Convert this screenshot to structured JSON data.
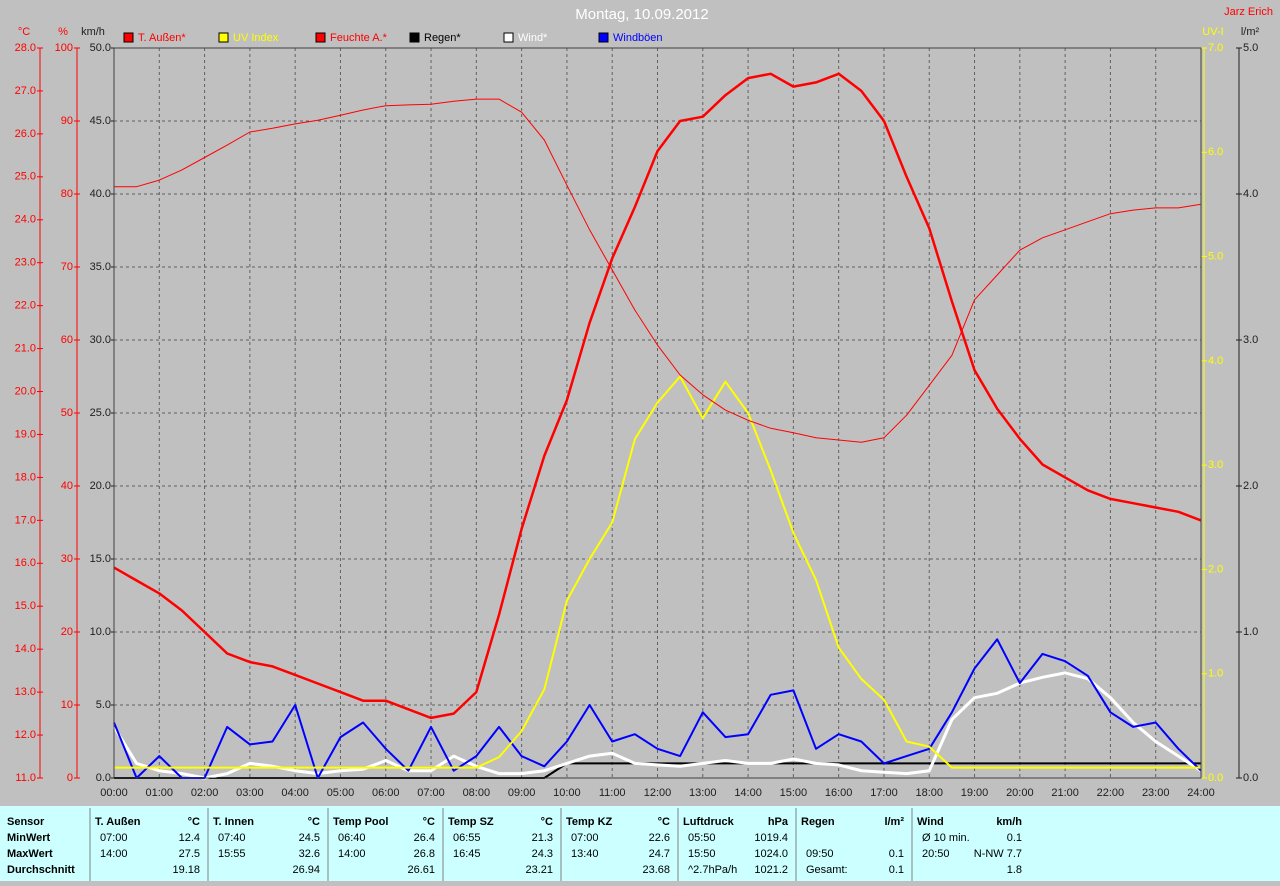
{
  "chart_data": {
    "type": "line",
    "title": "Montag, 10.09.2012",
    "subtitle": "Jarz Erich",
    "xlim": [
      0,
      24
    ],
    "xticks": [
      {
        "value": 0,
        "label": "00:00"
      },
      {
        "value": 1,
        "label": "01:00"
      },
      {
        "value": 2,
        "label": "02:00"
      },
      {
        "value": 3,
        "label": "03:00"
      },
      {
        "value": 4,
        "label": "04:00"
      },
      {
        "value": 5,
        "label": "05:00"
      },
      {
        "value": 6,
        "label": "06:00"
      },
      {
        "value": 7,
        "label": "07:00"
      },
      {
        "value": 8,
        "label": "08:00"
      },
      {
        "value": 9,
        "label": "09:00"
      },
      {
        "value": 10,
        "label": "10:00"
      },
      {
        "value": 11,
        "label": "11:00"
      },
      {
        "value": 12,
        "label": "12:00"
      },
      {
        "value": 13,
        "label": "13:00"
      },
      {
        "value": 14,
        "label": "14:00"
      },
      {
        "value": 15,
        "label": "15:00"
      },
      {
        "value": 16,
        "label": "16:00"
      },
      {
        "value": 17,
        "label": "17:00"
      },
      {
        "value": 18,
        "label": "18:00"
      },
      {
        "value": 19,
        "label": "19:00"
      },
      {
        "value": 20,
        "label": "20:00"
      },
      {
        "value": 21,
        "label": "21:00"
      },
      {
        "value": 22,
        "label": "22:00"
      },
      {
        "value": 23,
        "label": "23:00"
      },
      {
        "value": 24,
        "label": "24:00"
      }
    ],
    "grid": true,
    "axes": [
      {
        "id": "temp",
        "label": "°C",
        "side": "left",
        "color": "#ff0000",
        "lim": [
          11,
          28
        ],
        "ticks": [
          {
            "value": 28,
            "label": "28.0"
          },
          {
            "value": 27,
            "label": "27.0"
          },
          {
            "value": 26,
            "label": "26.0"
          },
          {
            "value": 25,
            "label": "25.0"
          },
          {
            "value": 24,
            "label": "24.0"
          },
          {
            "value": 23,
            "label": "23.0"
          },
          {
            "value": 22,
            "label": "22.0"
          },
          {
            "value": 21,
            "label": "21.0"
          },
          {
            "value": 20,
            "label": "20.0"
          },
          {
            "value": 19,
            "label": "19.0"
          },
          {
            "value": 18,
            "label": "18.0"
          },
          {
            "value": 17,
            "label": "17.0"
          },
          {
            "value": 16,
            "label": "16.0"
          },
          {
            "value": 15,
            "label": "15.0"
          },
          {
            "value": 14,
            "label": "14.0"
          },
          {
            "value": 13,
            "label": "13.0"
          },
          {
            "value": 12,
            "label": "12.0"
          },
          {
            "value": 11,
            "label": "11.0"
          }
        ]
      },
      {
        "id": "hum",
        "label": "%",
        "side": "left",
        "color": "#ff0000",
        "lim": [
          0,
          100
        ],
        "ticks": [
          100,
          90,
          80,
          70,
          60,
          50,
          40,
          30,
          20,
          10,
          0
        ]
      },
      {
        "id": "wind",
        "label": "km/h",
        "side": "left",
        "color": "#202020",
        "lim": [
          0,
          50
        ],
        "grid": true,
        "ticks": [
          {
            "value": 50,
            "label": "50.0"
          },
          {
            "value": 45,
            "label": "45.0"
          },
          {
            "value": 40,
            "label": "40.0"
          },
          {
            "value": 35,
            "label": "35.0"
          },
          {
            "value": 30,
            "label": "30.0"
          },
          {
            "value": 25,
            "label": "25.0"
          },
          {
            "value": 20,
            "label": "20.0"
          },
          {
            "value": 15,
            "label": "15.0"
          },
          {
            "value": 10,
            "label": "10.0"
          },
          {
            "value": 5,
            "label": "5.0"
          },
          {
            "value": 0,
            "label": "0.0"
          }
        ]
      },
      {
        "id": "uv",
        "label": "UV-I",
        "side": "right",
        "color": "#ffff00",
        "lim": [
          0,
          7
        ],
        "ticks": [
          {
            "value": 7,
            "label": "7.0"
          },
          {
            "value": 6,
            "label": "6.0"
          },
          {
            "value": 5,
            "label": "5.0"
          },
          {
            "value": 4,
            "label": "4.0"
          },
          {
            "value": 3,
            "label": "3.0"
          },
          {
            "value": 2,
            "label": "2.0"
          },
          {
            "value": 1,
            "label": "1.0"
          },
          {
            "value": 0,
            "label": "0.0"
          }
        ]
      },
      {
        "id": "rain",
        "label": "l/m²",
        "side": "right",
        "color": "#202020",
        "lim": [
          0,
          5
        ],
        "ticks": [
          {
            "value": 5,
            "label": "5.0"
          },
          {
            "value": 4,
            "label": "4.0"
          },
          {
            "value": 3,
            "label": "3.0"
          },
          {
            "value": 2,
            "label": "2.0"
          },
          {
            "value": 1,
            "label": "1.0"
          },
          {
            "value": 0,
            "label": "0.0"
          }
        ]
      }
    ],
    "x": [
      0,
      0.5,
      1,
      1.5,
      2,
      2.5,
      3,
      3.5,
      4,
      4.5,
      5,
      5.5,
      6,
      6.5,
      7,
      7.5,
      8,
      8.5,
      9,
      9.5,
      10,
      10.5,
      11,
      11.5,
      12,
      12.5,
      13,
      13.5,
      14,
      14.5,
      15,
      15.5,
      16,
      16.5,
      17,
      17.5,
      18,
      18.5,
      19,
      19.5,
      20,
      20.5,
      21,
      21.5,
      22,
      22.5,
      23,
      23.5,
      24
    ],
    "series": [
      {
        "name": "T. Außen*",
        "color": "#ff0000",
        "axis": "temp",
        "width": 2.5,
        "values": [
          15.9,
          15.6,
          15.3,
          14.9,
          14.4,
          13.9,
          13.7,
          13.6,
          13.4,
          13.2,
          13.0,
          12.8,
          12.8,
          12.6,
          12.4,
          12.5,
          13.0,
          14.8,
          16.8,
          18.5,
          19.8,
          21.6,
          23.1,
          24.3,
          25.6,
          26.3,
          26.4,
          26.9,
          27.3,
          27.4,
          27.1,
          27.2,
          27.4,
          27.0,
          26.3,
          25.0,
          23.8,
          22.1,
          20.5,
          19.6,
          18.9,
          18.3,
          18.0,
          17.7,
          17.5,
          17.4,
          17.3,
          17.2,
          17.0
        ]
      },
      {
        "name": "UV Index",
        "color": "#ffff00",
        "axis": "uv",
        "width": 2,
        "values": [
          0.1,
          0.1,
          0.1,
          0.1,
          0.1,
          0.1,
          0.1,
          0.1,
          0.1,
          0.1,
          0.1,
          0.1,
          0.1,
          0.1,
          0.1,
          0.1,
          0.1,
          0.2,
          0.45,
          0.85,
          1.7,
          2.1,
          2.45,
          3.25,
          3.6,
          3.85,
          3.45,
          3.8,
          3.5,
          2.95,
          2.35,
          1.9,
          1.25,
          0.95,
          0.75,
          0.35,
          0.3,
          0.1,
          0.1,
          0.1,
          0.1,
          0.1,
          0.1,
          0.1,
          0.1,
          0.1,
          0.1,
          0.1,
          0.1
        ]
      },
      {
        "name": "Feuchte A.*",
        "color": "#ff0000",
        "axis": "hum",
        "width": 1,
        "values": [
          81.0,
          81.0,
          81.9,
          83.3,
          85,
          86.7,
          88.5,
          89,
          89.6,
          90.1,
          90.8,
          91.5,
          92.1,
          92.2,
          92.3,
          92.7,
          93,
          93,
          91.2,
          87.4,
          81.2,
          75.1,
          69.6,
          64.1,
          59.3,
          55.2,
          52.5,
          50.4,
          49.0,
          47.9,
          47.3,
          46.6,
          46.3,
          46.0,
          46.6,
          49.7,
          53.8,
          57.9,
          65.5,
          68.9,
          72.3,
          74.0,
          75.1,
          76.2,
          77.3,
          77.8,
          78.1,
          78.1,
          78.6
        ]
      },
      {
        "name": "Regen*",
        "color": "#000000",
        "axis": "rain",
        "width": 2,
        "values": [
          0,
          0,
          0,
          0,
          0,
          0,
          0,
          0,
          0,
          0,
          0,
          0,
          0,
          0,
          0,
          0,
          0,
          0,
          0,
          0,
          0.1,
          0.1,
          0.1,
          0.1,
          0.1,
          0.1,
          0.1,
          0.1,
          0.1,
          0.1,
          0.1,
          0.1,
          0.1,
          0.1,
          0.1,
          0.1,
          0.1,
          0.1,
          0.1,
          0.1,
          0.1,
          0.1,
          0.1,
          0.1,
          0.1,
          0.1,
          0.1,
          0.1,
          0.1
        ]
      },
      {
        "name": "Wind*",
        "color": "#ffffff",
        "axis": "wind",
        "width": 3,
        "values": [
          3.5,
          1.0,
          0.5,
          0.3,
          0,
          0.3,
          1.0,
          0.8,
          0.5,
          0.3,
          0.5,
          0.6,
          1.2,
          0.5,
          0.5,
          1.5,
          0.8,
          0.3,
          0.3,
          0.5,
          1.0,
          1.5,
          1.7,
          1.0,
          0.9,
          0.8,
          1.0,
          1.2,
          1.0,
          1.0,
          1.3,
          1.0,
          0.9,
          0.5,
          0.4,
          0.3,
          0.5,
          4.0,
          5.5,
          5.8,
          6.5,
          6.9,
          7.2,
          6.8,
          5.5,
          3.8,
          2.5,
          1.5,
          0.5
        ]
      },
      {
        "name": "Windböen",
        "color": "#0000ff",
        "axis": "wind",
        "width": 2,
        "values": [
          3.8,
          0,
          1.5,
          0,
          0,
          3.5,
          2.3,
          2.5,
          5.0,
          0,
          2.8,
          3.8,
          2.0,
          0.5,
          3.5,
          0.5,
          1.5,
          3.5,
          1.5,
          0.8,
          2.5,
          5.0,
          2.5,
          3.0,
          2.0,
          1.5,
          4.5,
          2.8,
          3.0,
          5.7,
          6.0,
          2.0,
          3.0,
          2.5,
          1.0,
          1.5,
          2.0,
          4.5,
          7.5,
          9.5,
          6.5,
          8.5,
          8.0,
          7.0,
          4.5,
          3.5,
          3.8,
          2.0,
          0.5
        ]
      }
    ]
  },
  "table": {
    "header": "Sensor",
    "row_labels": [
      "MinWert",
      "MaxWert",
      "Durchschnitt"
    ],
    "groups": [
      {
        "name": "T. Außen",
        "unit": "°C",
        "min": [
          "07:00",
          "12.4"
        ],
        "max": [
          "14:00",
          "27.5"
        ],
        "avg": [
          "19.18"
        ]
      },
      {
        "name": "T. Innen",
        "unit": "°C",
        "min": [
          "07:40",
          "24.5"
        ],
        "max": [
          "15:55",
          "32.6"
        ],
        "avg": [
          "26.94"
        ]
      },
      {
        "name": "Temp Pool",
        "unit": "°C",
        "min": [
          "06:40",
          "26.4"
        ],
        "max": [
          "14:00",
          "26.8"
        ],
        "avg": [
          "26.61"
        ]
      },
      {
        "name": "Temp SZ",
        "unit": "°C",
        "min": [
          "06:55",
          "21.3"
        ],
        "max": [
          "16:45",
          "24.3"
        ],
        "avg": [
          "23.21"
        ]
      },
      {
        "name": "Temp KZ",
        "unit": "°C",
        "min": [
          "07:00",
          "22.6"
        ],
        "max": [
          "13:40",
          "24.7"
        ],
        "avg": [
          "23.68"
        ]
      },
      {
        "name": "Luftdruck",
        "unit": "hPa",
        "min": [
          "05:50",
          "1019.4"
        ],
        "max": [
          "15:50",
          "1024.0"
        ],
        "avg": [
          "^2.7hPa/h",
          "1021.2"
        ]
      },
      {
        "name": "Regen",
        "unit": "l/m²",
        "min": [],
        "max": [
          "09:50",
          "0.1"
        ],
        "avg": [
          "Gesamt:",
          "0.1"
        ]
      },
      {
        "name": "Wind",
        "unit": "km/h",
        "min": [
          "Ø 10 min.",
          "0.1"
        ],
        "max": [
          "20:50",
          "N-NW 7.7"
        ],
        "avg": [
          "1.8"
        ]
      }
    ]
  }
}
